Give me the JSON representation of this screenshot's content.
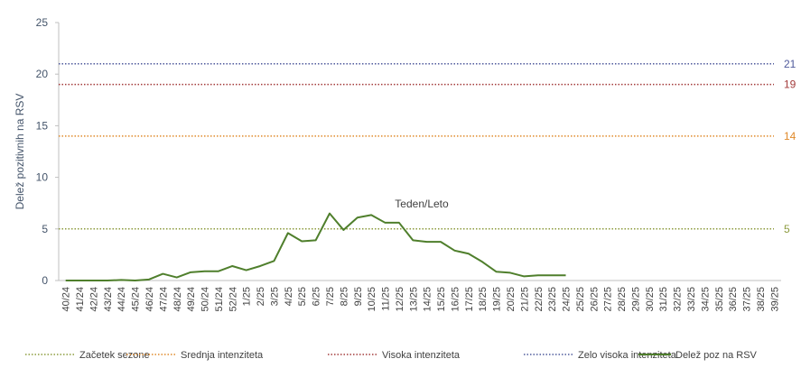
{
  "chart_data": {
    "type": "line",
    "x_label": "Teden/Leto",
    "y_label": "Delež pozitivnih na RSV",
    "categories": [
      "40/24",
      "41/24",
      "42/24",
      "43/24",
      "44/24",
      "45/24",
      "46/24",
      "47/24",
      "48/24",
      "49/24",
      "50/24",
      "51/24",
      "52/24",
      "1/25",
      "2/25",
      "3/25",
      "4/25",
      "5/25",
      "6/25",
      "7/25",
      "8/25",
      "9/25",
      "10/25",
      "11/25",
      "12/25",
      "13/25",
      "14/25",
      "15/25",
      "16/25",
      "17/25",
      "18/25",
      "19/25",
      "20/25",
      "21/25",
      "22/25",
      "23/25",
      "24/25",
      "25/25",
      "26/25",
      "27/25",
      "28/25",
      "29/25",
      "30/25",
      "31/25",
      "32/25",
      "33/25",
      "34/25",
      "35/25",
      "36/25",
      "37/25",
      "38/25",
      "39/25"
    ],
    "series": [
      {
        "name": "Delež poz na RSV",
        "color": "#4f7f2c",
        "values": [
          0,
          0,
          0,
          0,
          0.05,
          0,
          0.1,
          0.65,
          0.3,
          0.8,
          0.9,
          0.9,
          1.4,
          1.0,
          1.4,
          1.9,
          4.6,
          3.8,
          3.9,
          6.5,
          4.9,
          6.1,
          6.35,
          5.6,
          5.6,
          3.9,
          3.75,
          3.75,
          2.9,
          2.6,
          1.8,
          0.85,
          0.75,
          0.4,
          0.5,
          0.5,
          0.5,
          null,
          null,
          null,
          null,
          null,
          null,
          null,
          null,
          null,
          null,
          null,
          null,
          null,
          null,
          null
        ]
      }
    ],
    "thresholds": [
      {
        "name": "Začetek sezone",
        "color": "#8c9b3e",
        "value": 5
      },
      {
        "name": "Srednja intenziteta",
        "color": "#e08a2b",
        "value": 14
      },
      {
        "name": "Visoka intenziteta",
        "color": "#a33b3b",
        "value": 19
      },
      {
        "name": "Zelo visoka intenziteta",
        "color": "#4f5a9c",
        "value": 21
      }
    ],
    "ylim": [
      0,
      25
    ],
    "yticks": [
      0,
      5,
      10,
      15,
      20,
      25
    ]
  }
}
